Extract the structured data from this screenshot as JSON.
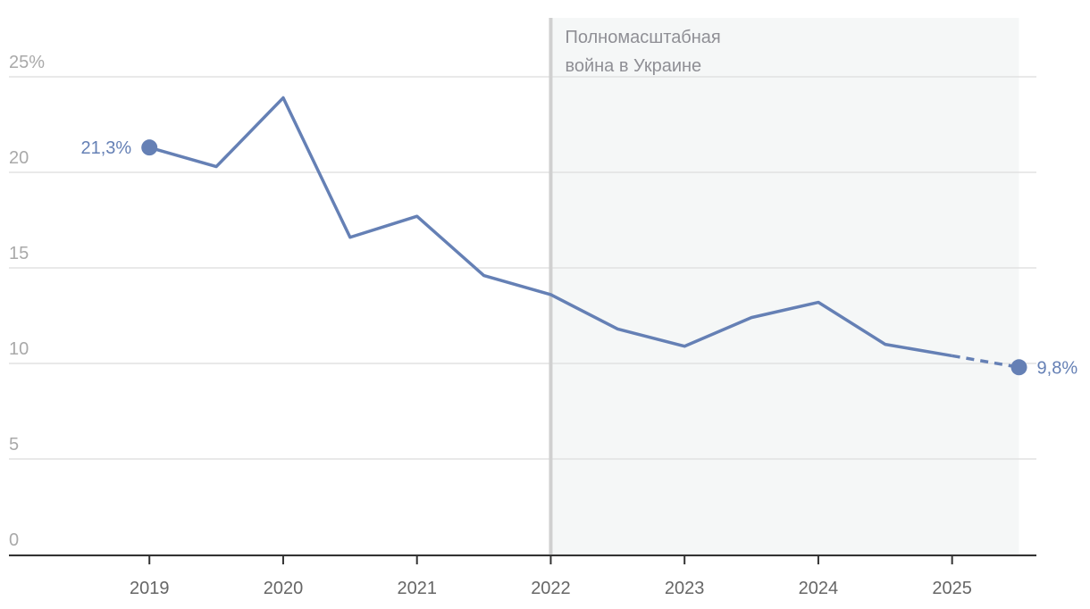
{
  "chart_data": {
    "type": "line",
    "annotation": [
      "Полномасштабная",
      "война в Украине"
    ],
    "annotation_x": 2022,
    "shade": [
      2022,
      2025.5
    ],
    "x": [
      2019,
      2019.5,
      2020,
      2020.5,
      2021,
      2021.5,
      2022,
      2022.5,
      2023,
      2023.5,
      2024,
      2024.5,
      2025,
      2025.5
    ],
    "series": [
      {
        "color": "#6580b5",
        "values": [
          21.3,
          20.3,
          23.9,
          16.6,
          17.7,
          14.6,
          13.6,
          11.8,
          10.9,
          12.4,
          13.2,
          11.0,
          10.4,
          9.8
        ],
        "value_labels": [
          "21,3%",
          null,
          null,
          null,
          null,
          null,
          null,
          null,
          null,
          null,
          null,
          null,
          null,
          "9,8%"
        ]
      }
    ],
    "dashed_last_segment": true,
    "xlim": [
      2017.95,
      2025.63
    ],
    "xticks": [
      2019,
      2020,
      2021,
      2022,
      2023,
      2024,
      2025
    ],
    "ylim": [
      0,
      25
    ],
    "yticks": [
      0,
      5,
      10,
      15,
      20,
      {
        "value": 25,
        "label": "25%"
      }
    ],
    "grid": true
  }
}
